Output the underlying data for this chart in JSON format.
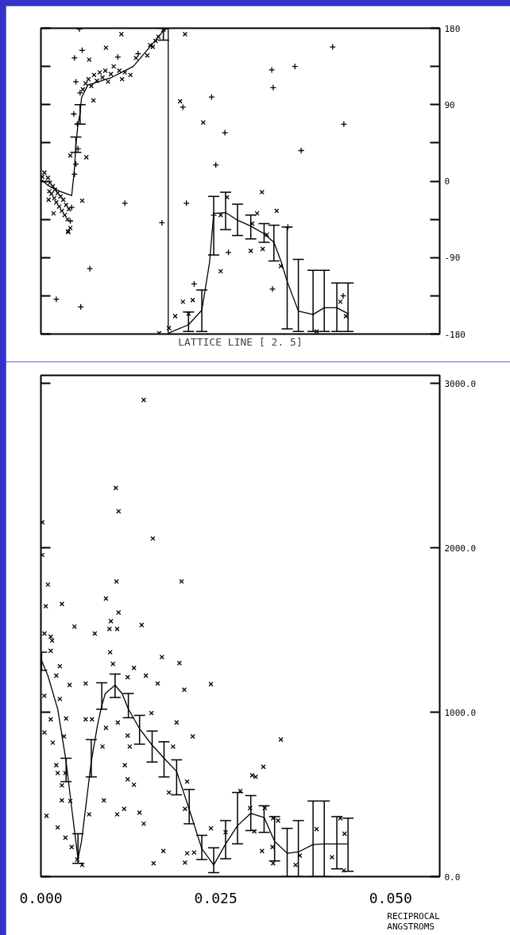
{
  "chart_data": [
    {
      "type": "scatter",
      "xlabel": "LATTICE LINE [ 2. 5]",
      "xlim": [
        0,
        0.057
      ],
      "ylim": [
        -180,
        180
      ],
      "tick_labels": "y",
      "grid": false,
      "yticks": [
        -180,
        {
          "value": -135,
          "label": null
        },
        -90,
        {
          "value": -45,
          "label": null
        },
        0,
        {
          "value": 45,
          "label": null
        },
        90,
        {
          "value": 135,
          "label": null
        },
        180
      ],
      "series": [
        {
          "type": "scatter",
          "marker": "cross",
          "color": "#000000",
          "x": [
            0.0055,
            0.0059,
            0.0048,
            0.005,
            0.0056,
            0.0047,
            0.0052,
            0.0053,
            0.005,
            0.0048,
            0.0044,
            0.0042,
            0.012,
            0.0173,
            0.007,
            0.0022,
            0.0057,
            0.011,
            0.0139,
            0.0203,
            0.0244,
            0.0263,
            0.025,
            0.0208,
            0.0268,
            0.0219,
            0.0417,
            0.033,
            0.0363,
            0.0332,
            0.0433,
            0.0372,
            0.0353,
            0.0331,
            0.0432,
            0.0247
          ],
          "values": [
            179,
            154,
            145,
            117,
            104,
            79,
            67,
            38,
            20,
            8,
            -31,
            -47,
            -26,
            -49,
            -103,
            -139,
            -148,
            146,
            150,
            87,
            99,
            57,
            19,
            -26,
            -84,
            -121,
            158,
            131,
            135,
            110,
            67,
            36,
            -54,
            -127,
            -135,
            -40
          ]
        },
        {
          "type": "scatter",
          "marker": "x",
          "color": "#000000",
          "x": [
            0.0002,
            0.0005,
            0.001,
            0.0012,
            0.0013,
            0.0015,
            0.0017,
            0.0019,
            0.002,
            0.0022,
            0.0024,
            0.0026,
            0.0028,
            0.003,
            0.0032,
            0.0034,
            0.0036,
            0.0038,
            0.004,
            0.0042,
            0.0039,
            0.0018,
            0.0011,
            0.006,
            0.0064,
            0.0068,
            0.0072,
            0.0076,
            0.008,
            0.0084,
            0.0088,
            0.0092,
            0.0096,
            0.01,
            0.0104,
            0.0112,
            0.0116,
            0.012,
            0.0128,
            0.0136,
            0.0152,
            0.0156,
            0.016,
            0.0164,
            0.0168,
            0.0175,
            0.0115,
            0.0206,
            0.0093,
            0.0069,
            0.0075,
            0.0199,
            0.0232,
            0.0042,
            0.0065,
            0.0059,
            0.0039,
            0.0257,
            0.0316,
            0.0266,
            0.0257,
            0.0337,
            0.0309,
            0.0302,
            0.03,
            0.0317,
            0.0323,
            0.0343,
            0.0428,
            0.0436,
            0.0394,
            0.0203,
            0.0217,
            0.0192,
            0.0183,
            0.0169,
            0.0211
          ],
          "values": [
            5,
            10,
            4,
            -12,
            -2,
            -15,
            -6,
            -20,
            -10,
            -25,
            -14,
            -30,
            -18,
            -35,
            -22,
            -40,
            -28,
            -45,
            -33,
            -55,
            -60,
            -38,
            -22,
            108,
            115,
            120,
            112,
            125,
            118,
            128,
            122,
            130,
            117,
            126,
            135,
            130,
            120,
            128,
            125,
            145,
            148,
            160,
            158,
            165,
            170,
            178,
            173,
            173,
            157,
            143,
            95,
            94,
            69,
            30,
            28,
            -23,
            -59,
            -106,
            -13,
            -19,
            -40,
            -35,
            -38,
            -50,
            -82,
            -80,
            -63,
            -100,
            -142,
            -159,
            -177,
            -142,
            -140,
            -159,
            -173,
            -179,
            -156
          ]
        },
        {
          "type": "line",
          "marker": "none",
          "color": "#000000",
          "x": [
            0,
            0.001,
            0.0027,
            0.0044,
            0.0048,
            0.005,
            0.0053,
            0.0056,
            0.0058,
            0.0067,
            0.0101,
            0.0132,
            0.0158,
            0.0175,
            0.0182,
            0.0182,
            0.0185,
            0.0211,
            0.023,
            0.0241,
            0.0247,
            0.0264,
            0.0281,
            0.03,
            0.0319,
            0.0333,
            0.0343,
            0.0352,
            0.0368,
            0.0389,
            0.0405,
            0.0423,
            0.0439
          ],
          "values": [
            2,
            -5,
            -12,
            -17,
            15,
            43,
            67,
            80,
            98,
            113,
            122,
            135,
            160,
            177,
            180,
            -180,
            -178,
            -169,
            -152,
            -96,
            -38,
            -37,
            -46,
            -53,
            -62,
            -72,
            -94,
            -118,
            -153,
            -157,
            -149,
            -149,
            -156
          ],
          "errors": [
            null,
            null,
            null,
            null,
            null,
            [
              34,
              52
            ],
            null,
            [
              67,
              90
            ],
            null,
            null,
            null,
            null,
            null,
            [
              166,
              180
            ],
            null,
            null,
            null,
            [
              -177,
              -154
            ],
            [
              -177,
              -128
            ],
            null,
            [
              -87,
              -18
            ],
            [
              -57,
              -13
            ],
            [
              -64,
              -27
            ],
            [
              -68,
              -40
            ],
            [
              -72,
              -50
            ],
            [
              -94,
              -52
            ],
            null,
            [
              -174,
              -54
            ],
            [
              -177,
              -92
            ],
            [
              -177,
              -105
            ],
            [
              -177,
              -105
            ],
            [
              -177,
              -120
            ],
            [
              -177,
              -120
            ]
          ]
        }
      ]
    },
    {
      "type": "scatter",
      "xlabel": "RECIPROCAL ANGSTROMS",
      "xlim": [
        0,
        0.057
      ],
      "ylim": [
        0,
        3050
      ],
      "grid": false,
      "xticks": [
        {
          "value": 0,
          "label": "0.000"
        },
        {
          "value": 0.025,
          "label": "0.025"
        },
        {
          "value": 0.05,
          "label": "0.050"
        }
      ],
      "yticks": [
        {
          "value": 0,
          "label": "0.0"
        },
        {
          "value": 1000,
          "label": "1000.0"
        },
        {
          "value": 2000,
          "label": "2000.0"
        },
        {
          "value": 3000,
          "label": "3000.0"
        }
      ],
      "series": [
        {
          "type": "scatter",
          "marker": "x",
          "color": "#000000",
          "x": [
            0.0147,
            0.0107,
            0.0111,
            0.016,
            0.0002,
            0.0002,
            0.001,
            0.0108,
            0.0201,
            0.0007,
            0.003,
            0.0093,
            0.0111,
            0.01,
            0.0098,
            0.0109,
            0.0144,
            0.0048,
            0.0077,
            0.0005,
            0.0014,
            0.0016,
            0.0014,
            0.0099,
            0.0173,
            0.0198,
            0.0103,
            0.0027,
            0.0133,
            0.015,
            0.0124,
            0.0167,
            0.0064,
            0.0205,
            0.0243,
            0.0041,
            0.0022,
            0.0005,
            0.0027,
            0.0064,
            0.0073,
            0.0036,
            0.0014,
            0.0005,
            0.0033,
            0.011,
            0.0093,
            0.0158,
            0.0194,
            0.0217,
            0.0124,
            0.0127,
            0.0088,
            0.0017,
            0.0189,
            0.0022,
            0.0035,
            0.0024,
            0.003,
            0.012,
            0.0124,
            0.0133,
            0.0183,
            0.0209,
            0.009,
            0.003,
            0.0042,
            0.0008,
            0.0069,
            0.0109,
            0.0119,
            0.0141,
            0.0147,
            0.0024,
            0.0035,
            0.0044,
            0.0052,
            0.0059,
            0.0175,
            0.0161,
            0.0209,
            0.0206,
            0.0219,
            0.0243,
            0.0285,
            0.0302,
            0.0264,
            0.0206,
            0.0343,
            0.0318,
            0.0307,
            0.0299,
            0.032,
            0.0305,
            0.0332,
            0.0339,
            0.0316,
            0.0331,
            0.0332,
            0.0364,
            0.037,
            0.0394,
            0.0416,
            0.0434,
            0.0433,
            0.0428
          ],
          "values": [
            2900,
            2365,
            2223,
            2057,
            2156,
            1957,
            1777,
            1796,
            1796,
            1645,
            1659,
            1692,
            1607,
            1554,
            1507,
            1507,
            1531,
            1521,
            1479,
            1479,
            1460,
            1436,
            1374,
            1365,
            1336,
            1299,
            1294,
            1280,
            1270,
            1223,
            1213,
            1175,
            1175,
            1137,
            1171,
            1166,
            1223,
            1100,
            1081,
            957,
            957,
            962,
            957,
            877,
            853,
            938,
            905,
            995,
            938,
            853,
            858,
            791,
            791,
            815,
            791,
            678,
            630,
            630,
            555,
            678,
            592,
            559,
            512,
            578,
            464,
            464,
            460,
            370,
            379,
            379,
            412,
            389,
            322,
            299,
            237,
            180,
            104,
            71,
            156,
            81,
            142,
            85,
            147,
            294,
            521,
            616,
            270,
            412,
            834,
            668,
            607,
            417,
            417,
            275,
            355,
            341,
            156,
            180,
            81,
            71,
            128,
            289,
            118,
            261,
            38,
            355
          ]
        },
        {
          "type": "line",
          "marker": "none",
          "color": "#000000",
          "x": [
            0.0001,
            0.001,
            0.0024,
            0.0036,
            0.0044,
            0.0053,
            0.0058,
            0.0072,
            0.0081,
            0.0087,
            0.0092,
            0.0106,
            0.0116,
            0.0125,
            0.0141,
            0.0159,
            0.0176,
            0.0194,
            0.0212,
            0.023,
            0.0247,
            0.0264,
            0.0281,
            0.03,
            0.0319,
            0.0334,
            0.0352,
            0.0368,
            0.0389,
            0.0405,
            0.0423,
            0.0439
          ],
          "values": [
            1313,
            1223,
            1019,
            701,
            417,
            109,
            213,
            700,
            924,
            1040,
            1114,
            1165,
            1114,
            1020,
            900,
            800,
            720,
            640,
            410,
            170,
            71,
            199,
            310,
            385,
            360,
            215,
            142,
            150,
            195,
            199,
            199,
            199
          ],
          "errors": [
            [
              1256,
              1365
            ],
            null,
            null,
            [
              578,
              720
            ],
            null,
            [
              81,
              261
            ],
            null,
            [
              607,
              834
            ],
            null,
            [
              1019,
              1180
            ],
            null,
            [
              1090,
              1232
            ],
            null,
            [
              967,
              1114
            ],
            [
              806,
              981
            ],
            [
              697,
              886
            ],
            [
              607,
              820
            ],
            [
              498,
              711
            ],
            [
              322,
              531
            ],
            [
              104,
              251
            ],
            [
              24,
              175
            ],
            [
              109,
              341
            ],
            [
              199,
              512
            ],
            [
              280,
              493
            ],
            [
              270,
              431
            ],
            [
              95,
              365
            ],
            [
              0,
              294
            ],
            [
              0,
              341
            ],
            [
              0,
              460
            ],
            [
              0,
              460
            ],
            [
              47,
              365
            ],
            [
              33,
              355
            ]
          ]
        }
      ]
    }
  ]
}
